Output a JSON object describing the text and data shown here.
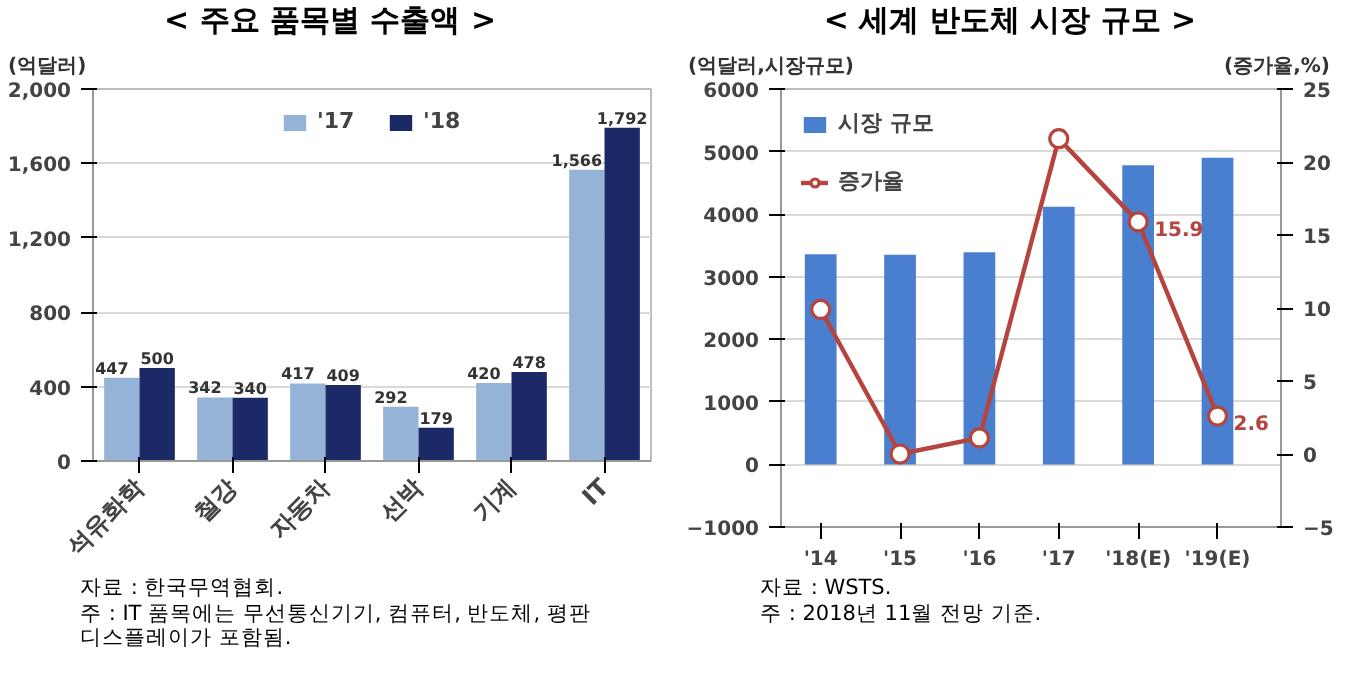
{
  "chart_data": [
    {
      "type": "bar",
      "title": "< 주요 품목별 수출액 >",
      "ylabel": "(억달러)",
      "categories": [
        "석유화학",
        "철강",
        "자동차",
        "선박",
        "기계",
        "IT"
      ],
      "series": [
        {
          "name": "'17",
          "color": "#95b3d7",
          "values": [
            447,
            342,
            417,
            292,
            420,
            1566
          ],
          "value_labels": [
            "447",
            "342",
            "417",
            "292",
            "420",
            "1,566"
          ]
        },
        {
          "name": "'18",
          "color": "#1b2a66",
          "values": [
            500,
            340,
            409,
            179,
            478,
            1792
          ],
          "value_labels": [
            "500",
            "340",
            "409",
            "179",
            "478",
            "1,792"
          ]
        }
      ],
      "ylim": [
        0,
        2000
      ],
      "yticks": [
        0,
        {
          "value": 400,
          "label": "400"
        },
        {
          "value": 800,
          "label": "800"
        },
        {
          "value": 1200,
          "label": "1,200"
        },
        {
          "value": 1600,
          "label": "1,600"
        },
        {
          "value": 2000,
          "label": "2,000"
        }
      ],
      "grid": "y",
      "legend": "top",
      "annotations": [
        "자료 : 한국무역협회.",
        "주 : IT 품목에는 무선통신기기, 컴퓨터, 반도체, 평판디스플레이가 포함됨."
      ]
    },
    {
      "type": "bar",
      "title": "< 세계 반도체 시장 규모 >",
      "ylabel": "(억달러,시장규모)",
      "y2label": "(증가율,%)",
      "categories": [
        "'14",
        "'15",
        "'16",
        "'17",
        "'18(E)",
        "'19(E)"
      ],
      "series": [
        {
          "name": "시장 규모",
          "color": "#4a7fcf",
          "values": [
            3360,
            3350,
            3390,
            4120,
            4780,
            4900
          ]
        },
        {
          "name": "증가율",
          "type": "line",
          "axis": "y2",
          "color": "#b5443f",
          "marker": "circle",
          "values": [
            9.9,
            0,
            1.1,
            21.6,
            15.9,
            2.6
          ],
          "value_labels": [
            null,
            null,
            null,
            null,
            "15.9",
            "2.6"
          ]
        }
      ],
      "ylim": [
        -1000,
        6000
      ],
      "yticks": [
        -1000,
        0,
        1000,
        2000,
        3000,
        4000,
        5000,
        6000
      ],
      "y2lim": [
        -5,
        25
      ],
      "y2ticks": [
        -5,
        0,
        5,
        10,
        15,
        20,
        25
      ],
      "grid": "y",
      "legend": "top left",
      "annotations": [
        "자료 : WSTS.",
        "주 : 2018년 11월 전망 기준."
      ]
    }
  ]
}
